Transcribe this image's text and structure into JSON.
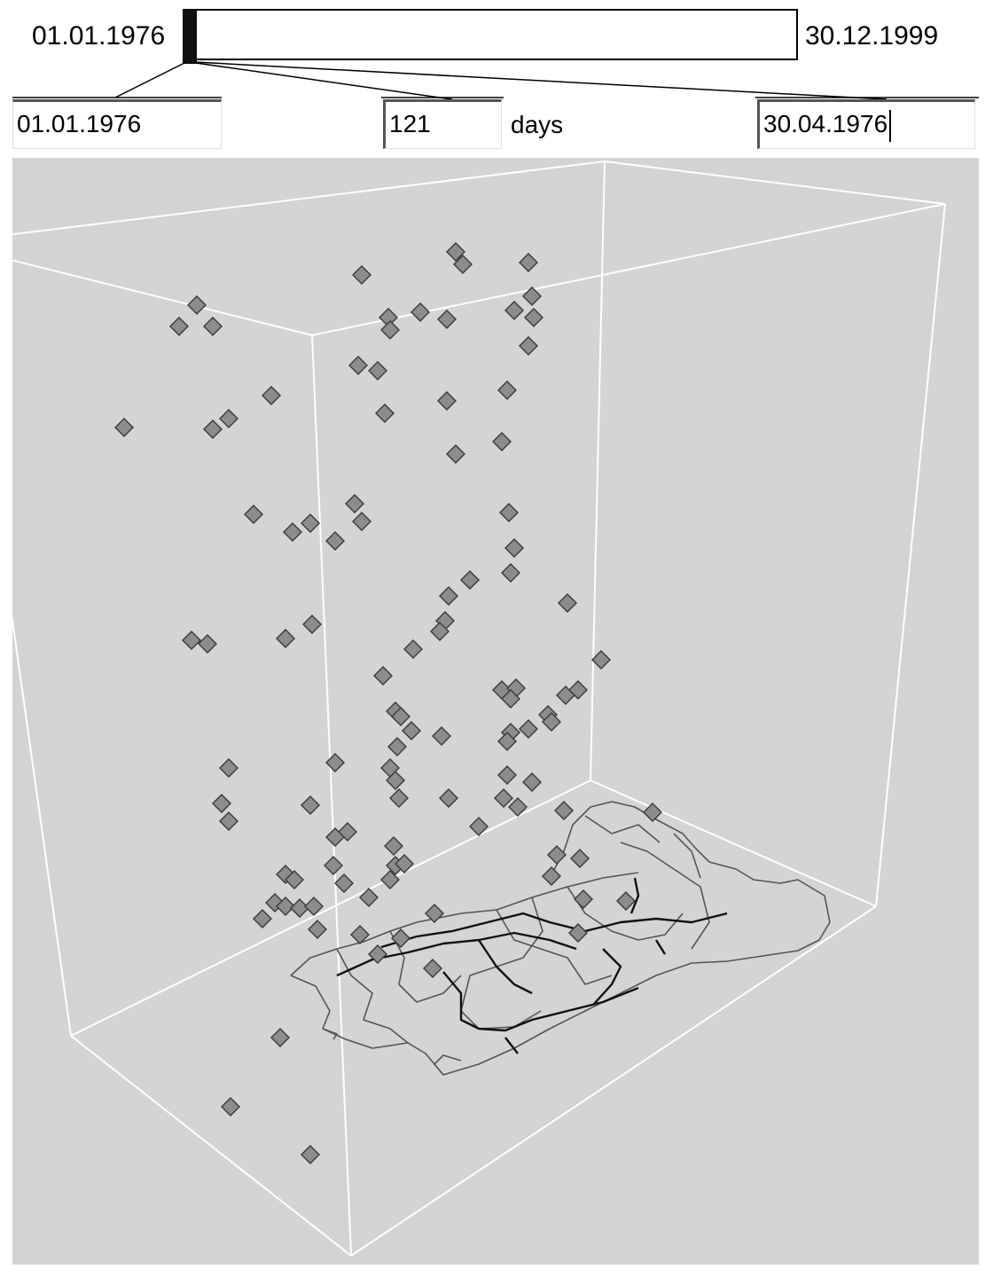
{
  "time_range": {
    "start_label": "01.01.1976",
    "end_label": "30.12.1999",
    "selection_fraction": 0.014
  },
  "filter": {
    "from_date": "01.01.1976",
    "duration_value": "121",
    "duration_unit": "days",
    "to_date": "30.04.1976"
  },
  "scene": {
    "background_color": "#d4d4d4",
    "box_color": "#ffffff",
    "point_color": "#8c8c8c",
    "map_border_color": "#555555",
    "river_color": "#111111"
  }
}
